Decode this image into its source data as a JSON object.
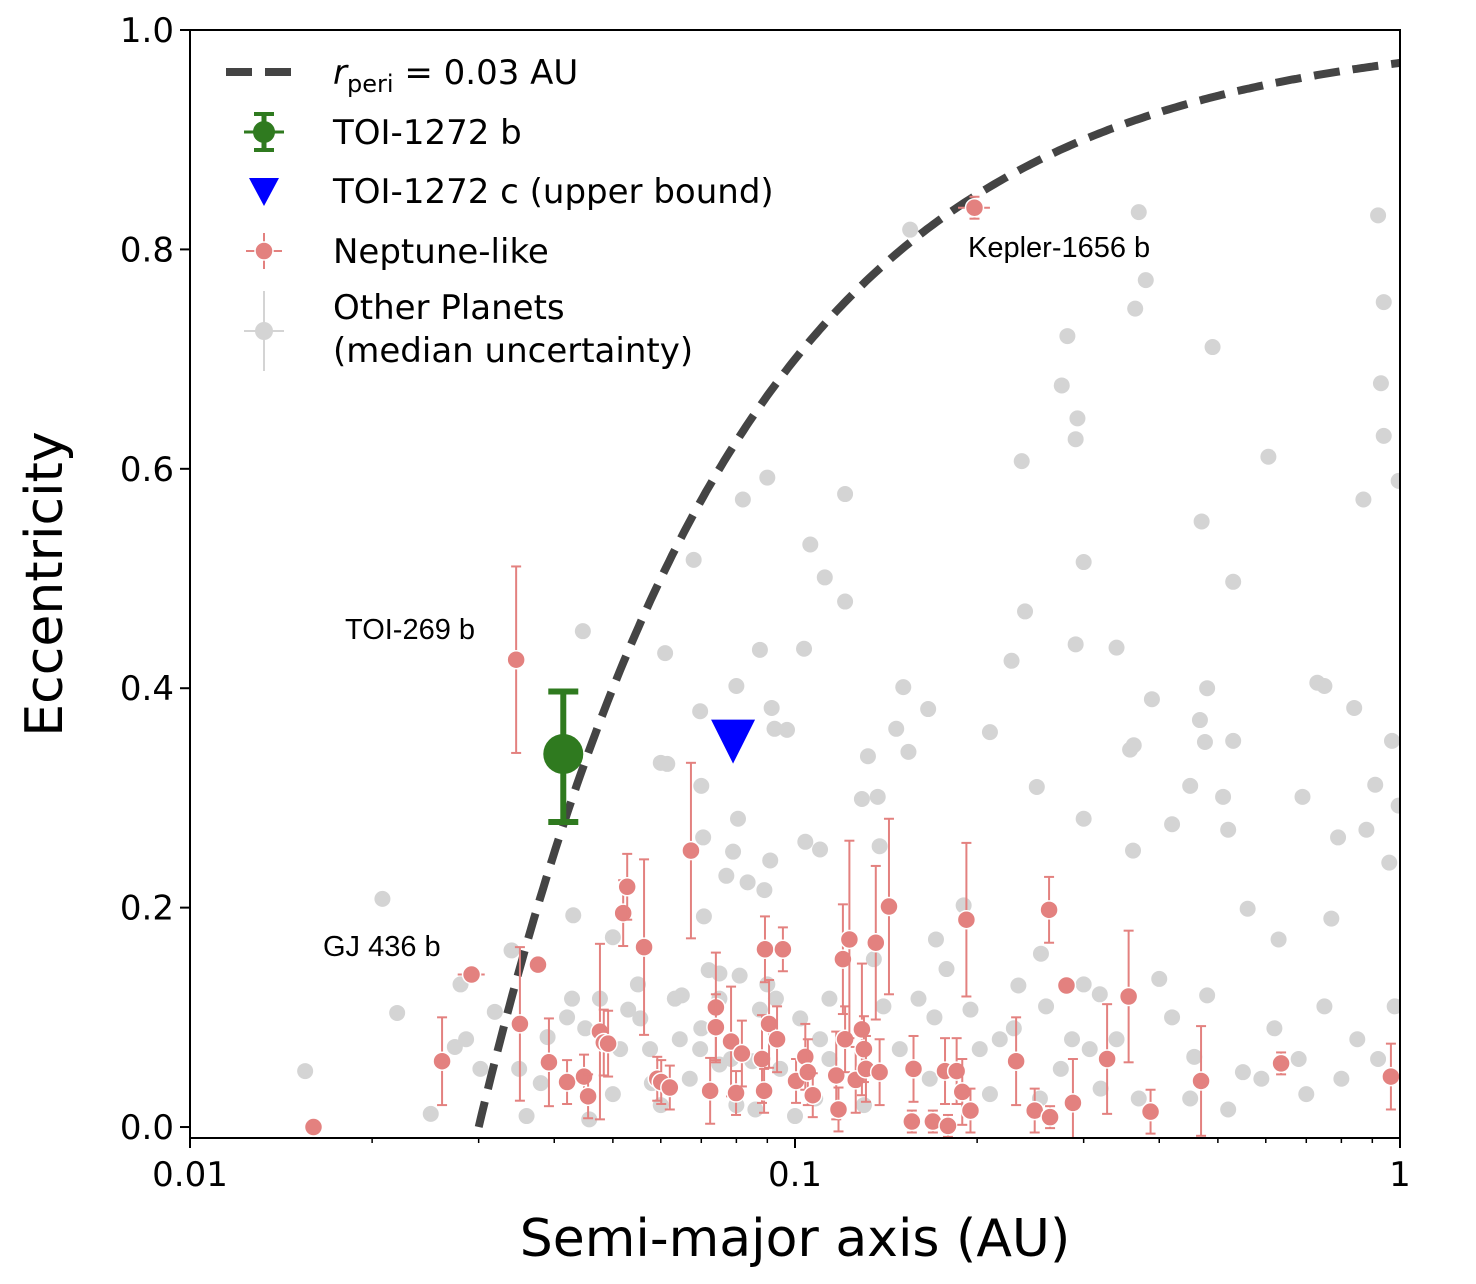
{
  "chart_data": {
    "type": "scatter",
    "xlabel": "Semi-major axis (AU)",
    "ylabel": "Eccentricity",
    "xscale": "log",
    "xlim": [
      0.01,
      1
    ],
    "ylim": [
      -0.01,
      1.0
    ],
    "x_tick_labels": [
      "0.01",
      "0.1",
      "1"
    ],
    "x_ticks": [
      0.01,
      0.1,
      1
    ],
    "y_tick_labels": [
      "0.0",
      "0.2",
      "0.4",
      "0.6",
      "0.8",
      "1.0"
    ],
    "y_ticks": [
      0.0,
      0.2,
      0.4,
      0.6,
      0.8,
      1.0
    ],
    "grid": false,
    "legend_placement": "top-left",
    "colors": {
      "curve": "#444444",
      "toi1272b": "#2f7a1f",
      "toi1272c": "#0000ff",
      "neptune": "#e3817f",
      "other": "#d4d4d4"
    },
    "legend": [
      {
        "key": "curve",
        "symbol": "r",
        "subscript": "peri",
        "text": " = 0.03 AU"
      },
      {
        "key": "toi1272b",
        "text": "TOI-1272 b"
      },
      {
        "key": "toi1272c",
        "text": "TOI-1272 c (upper bound)"
      },
      {
        "key": "neptune",
        "text": "Neptune-like"
      },
      {
        "key": "other",
        "text": "Other Planets",
        "text2": "(median uncertainty)"
      }
    ],
    "curve": {
      "r_peri": 0.03,
      "formula": "e = 1 - r_peri / a"
    },
    "toi1272b": {
      "a": 0.0414,
      "e": 0.34,
      "e_err_plus": 0.057,
      "e_err_minus": 0.062
    },
    "toi1272c": {
      "a": 0.079,
      "e_upper": 0.355
    },
    "annotations": [
      {
        "text": "TOI-269 b",
        "a": 0.0346,
        "e": 0.426,
        "e_err": 0.085,
        "a_err": 0.0012
      },
      {
        "text": "GJ 436 b",
        "a": 0.0292,
        "e": 0.139,
        "e_err": 0.0,
        "a_err": 0.0015
      },
      {
        "text": "Kepler-1656 b",
        "a": 0.198,
        "e": 0.838,
        "e_err": 0.01,
        "a_err": 0.012
      }
    ],
    "neptune_like": [
      [
        0.016,
        0.0,
        0
      ],
      [
        0.0261,
        0.06,
        0.04
      ],
      [
        0.0376,
        0.148,
        0
      ],
      [
        0.0351,
        0.094,
        0.07
      ],
      [
        0.0392,
        0.059,
        0.04
      ],
      [
        0.042,
        0.041,
        0.02
      ],
      [
        0.0448,
        0.046,
        0.02
      ],
      [
        0.0455,
        0.028,
        0.02
      ],
      [
        0.0476,
        0.087,
        0.08
      ],
      [
        0.0483,
        0.077,
        0.03
      ],
      [
        0.0491,
        0.076,
        0.03
      ],
      [
        0.052,
        0.195,
        0.03
      ],
      [
        0.0528,
        0.219,
        0.03
      ],
      [
        0.0563,
        0.164,
        0.08
      ],
      [
        0.0592,
        0.044,
        0.02
      ],
      [
        0.0601,
        0.041,
        0.02
      ],
      [
        0.0621,
        0.036,
        0.02
      ],
      [
        0.0673,
        0.252,
        0.08
      ],
      [
        0.0724,
        0.033,
        0.03
      ],
      [
        0.074,
        0.109,
        0.05
      ],
      [
        0.074,
        0.091,
        0.03
      ],
      [
        0.0784,
        0.078,
        0.05
      ],
      [
        0.0799,
        0.031,
        0.02
      ],
      [
        0.0817,
        0.067,
        0.03
      ],
      [
        0.0882,
        0.062,
        0.04
      ],
      [
        0.0889,
        0.033,
        0.02
      ],
      [
        0.0892,
        0.162,
        0.03
      ],
      [
        0.0906,
        0.094,
        0.04
      ],
      [
        0.0934,
        0.08,
        0.03
      ],
      [
        0.0955,
        0.162,
        0.02
      ],
      [
        0.1004,
        0.042,
        0.02
      ],
      [
        0.104,
        0.064,
        0.03
      ],
      [
        0.105,
        0.05,
        0.03
      ],
      [
        0.107,
        0.029,
        0.02
      ],
      [
        0.117,
        0.047,
        0.04
      ],
      [
        0.118,
        0.016,
        0.02
      ],
      [
        0.12,
        0.153,
        0.05
      ],
      [
        0.121,
        0.08,
        0.03
      ],
      [
        0.123,
        0.171,
        0.09
      ],
      [
        0.126,
        0.043,
        0.03
      ],
      [
        0.129,
        0.089,
        0.06
      ],
      [
        0.13,
        0.071,
        0.03
      ],
      [
        0.131,
        0.053,
        0.03
      ],
      [
        0.136,
        0.168,
        0.07
      ],
      [
        0.138,
        0.05,
        0.03
      ],
      [
        0.143,
        0.201,
        0.08
      ],
      [
        0.157,
        0.053,
        0.03
      ],
      [
        0.156,
        0.005,
        0.01
      ],
      [
        0.169,
        0.005,
        0.01
      ],
      [
        0.177,
        0.051,
        0.03
      ],
      [
        0.179,
        0.001,
        0.01
      ],
      [
        0.185,
        0.051,
        0.03
      ],
      [
        0.189,
        0.032,
        0.03
      ],
      [
        0.192,
        0.189,
        0.07
      ],
      [
        0.195,
        0.015,
        0.02
      ],
      [
        0.232,
        0.06,
        0.04
      ],
      [
        0.249,
        0.015,
        0.02
      ],
      [
        0.263,
        0.198,
        0.03
      ],
      [
        0.264,
        0.009,
        0.01
      ],
      [
        0.281,
        0.129,
        0
      ],
      [
        0.288,
        0.022,
        0.04
      ],
      [
        0.328,
        0.062,
        0.05
      ],
      [
        0.356,
        0.119,
        0.06
      ],
      [
        0.387,
        0.014,
        0.02
      ],
      [
        0.469,
        0.042,
        0.05
      ],
      [
        0.636,
        0.058,
        0.01
      ],
      [
        0.966,
        0.046,
        0.03
      ]
    ],
    "other_planets": [
      [
        0.0155,
        0.051
      ],
      [
        0.0208,
        0.208
      ],
      [
        0.022,
        0.104
      ],
      [
        0.025,
        0.012
      ],
      [
        0.0274,
        0.073
      ],
      [
        0.028,
        0.13
      ],
      [
        0.0286,
        0.08
      ],
      [
        0.0302,
        0.053
      ],
      [
        0.0319,
        0.105
      ],
      [
        0.034,
        0.161
      ],
      [
        0.035,
        0.053
      ],
      [
        0.039,
        0.082
      ],
      [
        0.0428,
        0.117
      ],
      [
        0.043,
        0.193
      ],
      [
        0.0446,
        0.452
      ],
      [
        0.0457,
        0.007
      ],
      [
        0.05,
        0.173
      ],
      [
        0.0514,
        0.071
      ],
      [
        0.0555,
        0.099
      ],
      [
        0.06,
        0.332
      ],
      [
        0.061,
        0.432
      ],
      [
        0.0615,
        0.331
      ],
      [
        0.0633,
        0.117
      ],
      [
        0.068,
        0.517
      ],
      [
        0.0697,
        0.379
      ],
      [
        0.07,
        0.311
      ],
      [
        0.0705,
        0.264
      ],
      [
        0.0707,
        0.192
      ],
      [
        0.072,
        0.143
      ],
      [
        0.075,
        0.057
      ],
      [
        0.077,
        0.229
      ],
      [
        0.0784,
        0.062
      ],
      [
        0.079,
        0.251
      ],
      [
        0.08,
        0.402
      ],
      [
        0.0805,
        0.281
      ],
      [
        0.081,
        0.138
      ],
      [
        0.082,
        0.572
      ],
      [
        0.0835,
        0.223
      ],
      [
        0.086,
        0.016
      ],
      [
        0.0875,
        0.435
      ],
      [
        0.089,
        0.216
      ],
      [
        0.09,
        0.592
      ],
      [
        0.091,
        0.243
      ],
      [
        0.0915,
        0.382
      ],
      [
        0.0925,
        0.363
      ],
      [
        0.093,
        0.117
      ],
      [
        0.097,
        0.362
      ],
      [
        0.102,
        0.099
      ],
      [
        0.1035,
        0.436
      ],
      [
        0.104,
        0.26
      ],
      [
        0.106,
        0.531
      ],
      [
        0.108,
        0.026
      ],
      [
        0.11,
        0.253
      ],
      [
        0.112,
        0.501
      ],
      [
        0.114,
        0.117
      ],
      [
        0.121,
        0.577
      ],
      [
        0.121,
        0.479
      ],
      [
        0.129,
        0.299
      ],
      [
        0.132,
        0.338
      ],
      [
        0.135,
        0.153
      ],
      [
        0.137,
        0.301
      ],
      [
        0.138,
        0.256
      ],
      [
        0.147,
        0.363
      ],
      [
        0.151,
        0.401
      ],
      [
        0.154,
        0.342
      ],
      [
        0.155,
        0.818
      ],
      [
        0.16,
        0.117
      ],
      [
        0.166,
        0.381
      ],
      [
        0.171,
        0.171
      ],
      [
        0.178,
        0.144
      ],
      [
        0.19,
        0.202
      ],
      [
        0.195,
        0.107
      ],
      [
        0.21,
        0.36
      ],
      [
        0.228,
        0.425
      ],
      [
        0.234,
        0.129
      ],
      [
        0.237,
        0.607
      ],
      [
        0.24,
        0.47
      ],
      [
        0.251,
        0.31
      ],
      [
        0.255,
        0.158
      ],
      [
        0.276,
        0.676
      ],
      [
        0.282,
        0.721
      ],
      [
        0.287,
        0.08
      ],
      [
        0.291,
        0.44
      ],
      [
        0.293,
        0.646
      ],
      [
        0.291,
        0.627
      ],
      [
        0.3,
        0.515
      ],
      [
        0.3,
        0.281
      ],
      [
        0.307,
        0.071
      ],
      [
        0.319,
        0.121
      ],
      [
        0.34,
        0.437
      ],
      [
        0.358,
        0.344
      ],
      [
        0.362,
        0.252
      ],
      [
        0.363,
        0.348
      ],
      [
        0.365,
        0.746
      ],
      [
        0.37,
        0.834
      ],
      [
        0.38,
        0.772
      ],
      [
        0.389,
        0.39
      ],
      [
        0.4,
        0.135
      ],
      [
        0.42,
        0.276
      ],
      [
        0.45,
        0.311
      ],
      [
        0.457,
        0.064
      ],
      [
        0.467,
        0.371
      ],
      [
        0.47,
        0.552
      ],
      [
        0.476,
        0.351
      ],
      [
        0.48,
        0.4
      ],
      [
        0.49,
        0.711
      ],
      [
        0.51,
        0.301
      ],
      [
        0.52,
        0.271
      ],
      [
        0.53,
        0.352
      ],
      [
        0.53,
        0.497
      ],
      [
        0.56,
        0.199
      ],
      [
        0.606,
        0.611
      ],
      [
        0.63,
        0.171
      ],
      [
        0.69,
        0.301
      ],
      [
        0.73,
        0.405
      ],
      [
        0.75,
        0.402
      ],
      [
        0.77,
        0.19
      ],
      [
        0.79,
        0.264
      ],
      [
        0.84,
        0.382
      ],
      [
        0.87,
        0.572
      ],
      [
        0.88,
        0.271
      ],
      [
        0.91,
        0.312
      ],
      [
        0.92,
        0.831
      ],
      [
        0.93,
        0.678
      ],
      [
        0.94,
        0.63
      ],
      [
        0.94,
        0.752
      ],
      [
        0.96,
        0.241
      ],
      [
        0.97,
        0.352
      ],
      [
        0.995,
        0.293
      ],
      [
        0.995,
        0.589
      ],
      [
        0.0476,
        0.117
      ],
      [
        0.053,
        0.107
      ],
      [
        0.0576,
        0.071
      ],
      [
        0.0645,
        0.08
      ],
      [
        0.067,
        0.044
      ],
      [
        0.0697,
        0.071
      ],
      [
        0.075,
        0.117
      ],
      [
        0.0875,
        0.107
      ],
      [
        0.0945,
        0.053
      ],
      [
        0.114,
        0.062
      ],
      [
        0.149,
        0.071
      ],
      [
        0.167,
        0.044
      ],
      [
        0.202,
        0.071
      ],
      [
        0.218,
        0.08
      ],
      [
        0.254,
        0.026
      ],
      [
        0.275,
        0.053
      ],
      [
        0.32,
        0.035
      ],
      [
        0.37,
        0.026
      ],
      [
        0.45,
        0.026
      ],
      [
        0.52,
        0.016
      ],
      [
        0.59,
        0.044
      ],
      [
        0.68,
        0.062
      ],
      [
        0.8,
        0.044
      ],
      [
        0.92,
        0.062
      ],
      [
        0.045,
        0.09
      ],
      [
        0.05,
        0.03
      ],
      [
        0.055,
        0.13
      ],
      [
        0.06,
        0.02
      ],
      [
        0.065,
        0.12
      ],
      [
        0.07,
        0.09
      ],
      [
        0.075,
        0.14
      ],
      [
        0.08,
        0.02
      ],
      [
        0.085,
        0.06
      ],
      [
        0.09,
        0.13
      ],
      [
        0.1,
        0.01
      ],
      [
        0.11,
        0.08
      ],
      [
        0.13,
        0.02
      ],
      [
        0.14,
        0.11
      ],
      [
        0.17,
        0.1
      ],
      [
        0.21,
        0.03
      ],
      [
        0.23,
        0.09
      ],
      [
        0.26,
        0.11
      ],
      [
        0.3,
        0.13
      ],
      [
        0.34,
        0.08
      ],
      [
        0.42,
        0.1
      ],
      [
        0.48,
        0.12
      ],
      [
        0.55,
        0.05
      ],
      [
        0.62,
        0.09
      ],
      [
        0.7,
        0.03
      ],
      [
        0.75,
        0.11
      ],
      [
        0.85,
        0.08
      ],
      [
        0.98,
        0.11
      ],
      [
        0.038,
        0.04
      ],
      [
        0.042,
        0.1
      ],
      [
        0.036,
        0.01
      ],
      [
        0.058,
        0.04
      ]
    ]
  }
}
